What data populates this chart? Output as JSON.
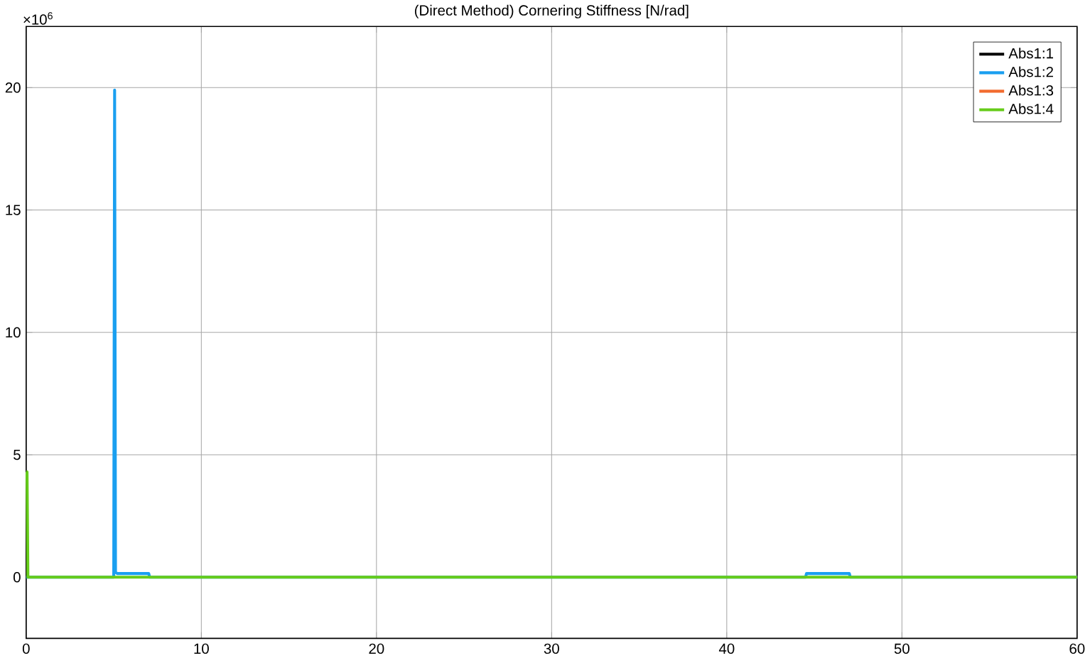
{
  "chart_data": {
    "type": "line",
    "title": "(Direct Method) Cornering Stiffness [N/rad]",
    "annotations": [
      "×10$^{6}$"
    ],
    "xlim": [
      0,
      60
    ],
    "xticks": [
      0,
      10,
      20,
      30,
      40,
      50,
      60
    ],
    "ylim": [
      -2.5,
      22.5
    ],
    "yticks": [
      0,
      5,
      10,
      15,
      20
    ],
    "grid": true,
    "legend": "top right",
    "marker": "none",
    "line_style": "solid",
    "series": [
      {
        "name": "Abs1:1",
        "color": "#000000"
      },
      {
        "name": "Abs1:2",
        "color": "#1a9ff0",
        "x": [
          0,
          5.0,
          5.05,
          5.1,
          5.2,
          7.0,
          7.05,
          44.5,
          44.55,
          47.0,
          47.05,
          60
        ],
        "values": [
          0,
          0,
          19.9,
          0.2,
          0.15,
          0.15,
          0,
          0,
          0.15,
          0.15,
          0,
          0
        ]
      },
      {
        "name": "Abs1:3",
        "color": "#f26b2f"
      },
      {
        "name": "Abs1:4",
        "color": "#66cc1a",
        "x": [
          0,
          0.05,
          0.1,
          60
        ],
        "values": [
          4.3,
          4.3,
          0,
          0
        ]
      }
    ]
  }
}
